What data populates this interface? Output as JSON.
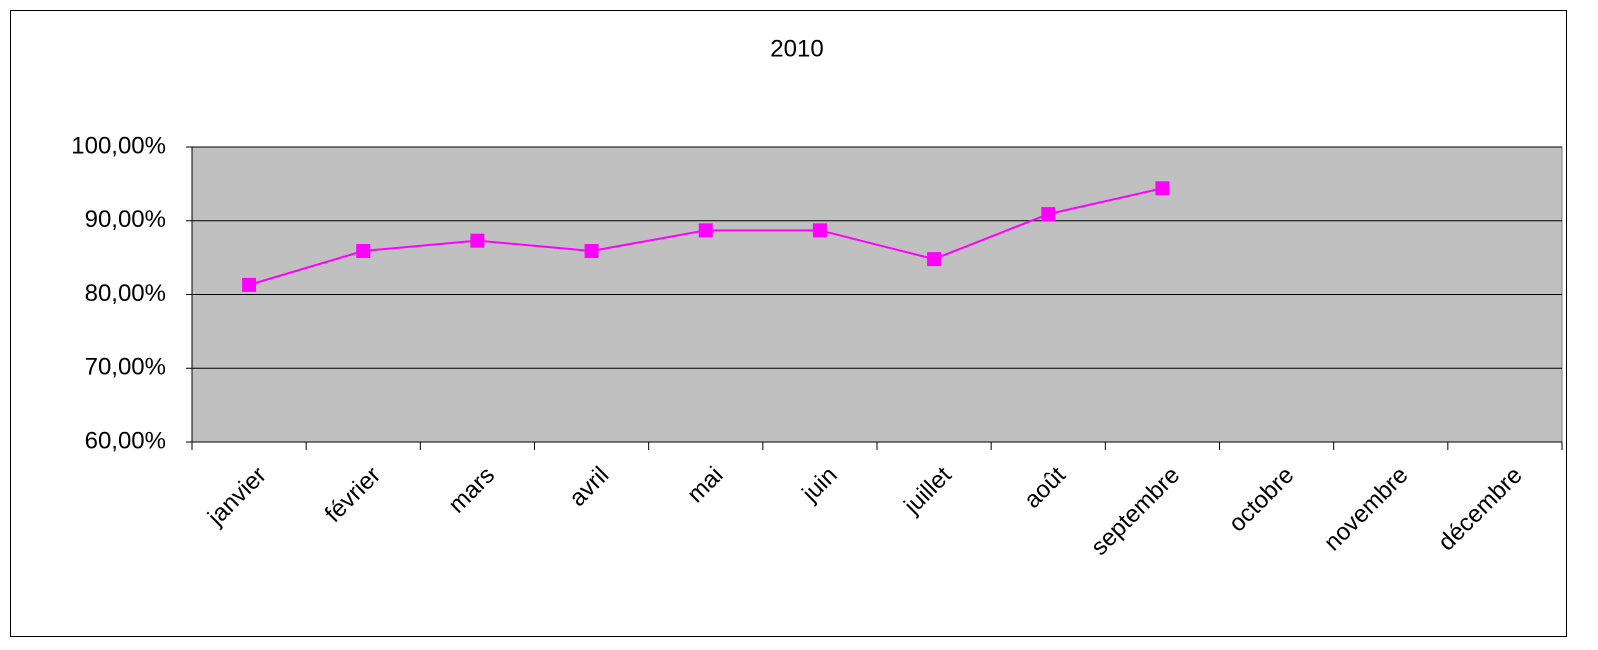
{
  "chart_data": {
    "type": "line",
    "title": "2010",
    "categories": [
      "janvier",
      "février",
      "mars",
      "avril",
      "mai",
      "juin",
      "juillet",
      "août",
      "septembre",
      "octobre",
      "novembre",
      "décembre"
    ],
    "series": [
      {
        "color": "#ff00ff",
        "values": [
          81.3,
          85.9,
          87.3,
          85.9,
          88.7,
          88.7,
          84.8,
          90.9,
          94.4,
          null,
          null,
          null
        ]
      }
    ],
    "ylim": [
      60,
      100
    ],
    "yticks": [
      {
        "value": 60,
        "label": "60,00%"
      },
      {
        "value": 70,
        "label": "70,00%"
      },
      {
        "value": 80,
        "label": "80,00%"
      },
      {
        "value": 90,
        "label": "90,00%"
      },
      {
        "value": 100,
        "label": "100,00%"
      }
    ],
    "grid": true
  }
}
